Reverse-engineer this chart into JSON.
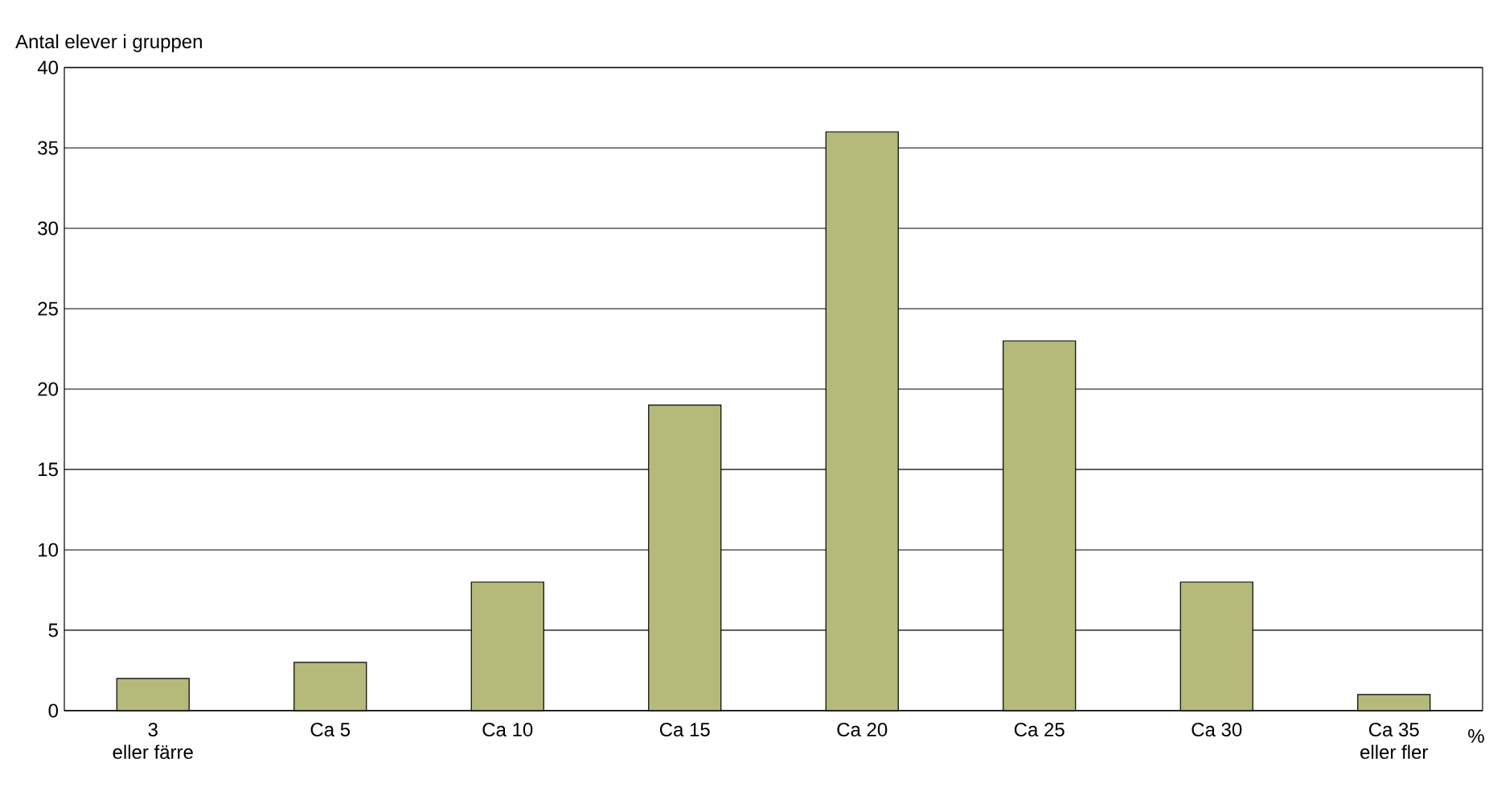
{
  "chart_data": {
    "type": "bar",
    "ylabel": "Antal elever i gruppen",
    "xlabel": "%",
    "categories": [
      "3\neller färre",
      "Ca 5",
      "Ca 10",
      "Ca 15",
      "Ca 20",
      "Ca 25",
      "Ca 30",
      "Ca 35\neller fler"
    ],
    "values": [
      2,
      3,
      8,
      19,
      36,
      23,
      8,
      1
    ],
    "color": "#b5b97a",
    "ylim": [
      0,
      40
    ],
    "yticks": [
      0,
      5,
      10,
      15,
      20,
      25,
      30,
      35,
      40
    ],
    "grid": "y"
  }
}
